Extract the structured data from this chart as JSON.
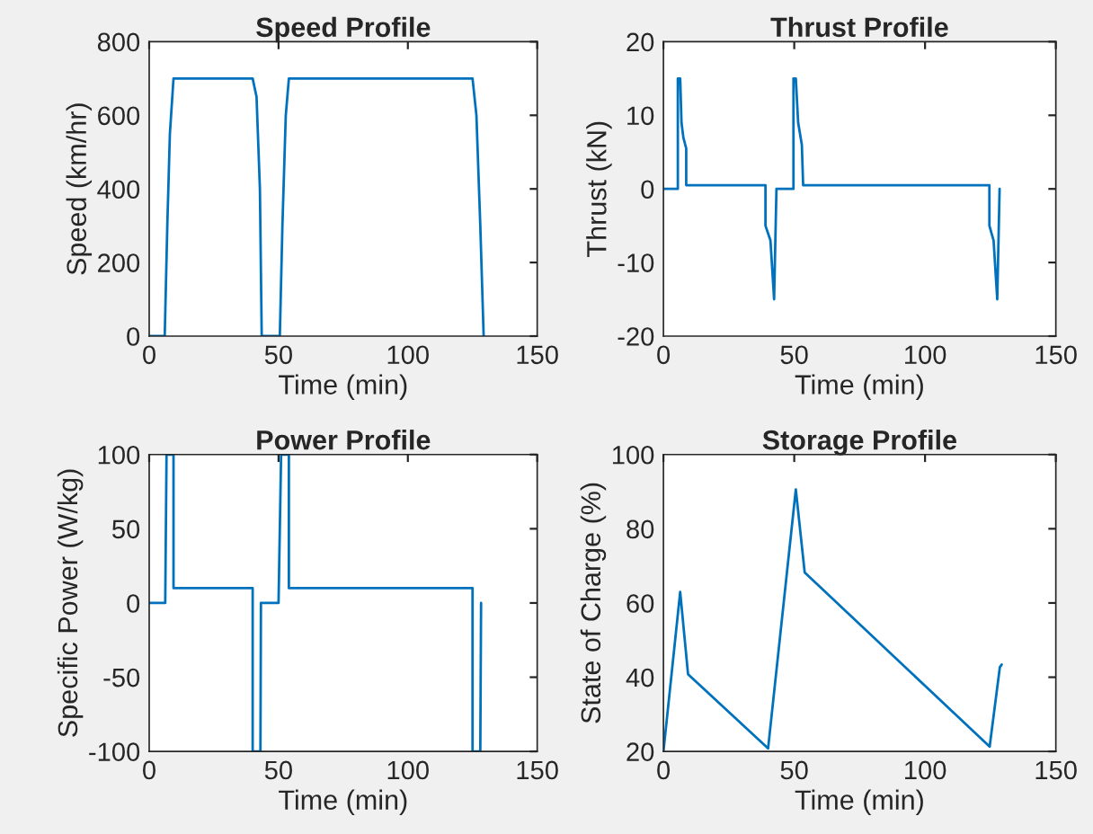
{
  "chart_data": [
    {
      "type": "line",
      "title": "Speed Profile",
      "xlabel": "Time (min)",
      "ylabel": "Speed (km/hr)",
      "xlim": [
        0,
        150
      ],
      "xticks": [
        0,
        50,
        100,
        150
      ],
      "ylim": [
        0,
        800
      ],
      "yticks": [
        0,
        200,
        400,
        600,
        800
      ],
      "grid": false,
      "legend": false,
      "series": [
        {
          "color": "#0072bd",
          "x": [
            0,
            6,
            7,
            8,
            9.4,
            40,
            41.5,
            42.8,
            43.5,
            50.5,
            51.5,
            52.8,
            54,
            125,
            126.5,
            128,
            129.3
          ],
          "values": [
            0,
            0,
            300,
            550,
            700,
            700,
            650,
            400,
            0,
            0,
            300,
            600,
            700,
            700,
            600,
            300,
            0
          ]
        }
      ]
    },
    {
      "type": "line",
      "title": "Thrust Profile",
      "xlabel": "Time (min)",
      "ylabel": "Thrust (kN)",
      "xlim": [
        0,
        150
      ],
      "xticks": [
        0,
        50,
        100,
        150
      ],
      "ylim": [
        -20,
        20
      ],
      "yticks": [
        -20,
        -10,
        0,
        10,
        20
      ],
      "grid": false,
      "legend": false,
      "series": [
        {
          "color": "#0072bd",
          "x": [
            0,
            5.5,
            5.5,
            6.4,
            6.9,
            7.6,
            8.7,
            8.7,
            39,
            39,
            40.9,
            42.3,
            43.2,
            49.7,
            49.7,
            50.6,
            51.5,
            52.9,
            53.4,
            124.6,
            124.6,
            126.2,
            127.6,
            128.5
          ],
          "values": [
            0,
            0,
            15,
            15,
            9,
            7,
            5.5,
            0.5,
            0.5,
            -5,
            -7,
            -15,
            0,
            0,
            15,
            15,
            9,
            6,
            0.5,
            0.5,
            -5,
            -7,
            -15,
            0
          ]
        }
      ]
    },
    {
      "type": "line",
      "title": "Power Profile",
      "xlabel": "Time (min)",
      "ylabel": "Specific Power (W/kg)",
      "xlim": [
        0,
        150
      ],
      "xticks": [
        0,
        50,
        100,
        150
      ],
      "ylim": [
        -100,
        100
      ],
      "yticks": [
        -100,
        -50,
        0,
        50,
        100
      ],
      "grid": false,
      "legend": false,
      "series": [
        {
          "color": "#0072bd",
          "x": [
            0,
            6.2,
            6.7,
            9.4,
            9.4,
            40,
            40,
            43,
            43.2,
            50,
            51,
            54,
            54,
            125,
            125,
            128,
            128.3
          ],
          "values": [
            0,
            0,
            100,
            100,
            10,
            10,
            -100,
            -100,
            0,
            0,
            100,
            100,
            10,
            10,
            -100,
            -100,
            0
          ]
        }
      ]
    },
    {
      "type": "line",
      "title": "Storage Profile",
      "xlabel": "Time (min)",
      "ylabel": "State of Charge (%)",
      "xlim": [
        0,
        150
      ],
      "xticks": [
        0,
        50,
        100,
        150
      ],
      "ylim": [
        20,
        100
      ],
      "yticks": [
        20,
        40,
        60,
        80,
        100
      ],
      "grid": false,
      "legend": false,
      "series": [
        {
          "color": "#0072bd",
          "x": [
            0,
            6.4,
            9.4,
            40,
            50.6,
            54,
            124.7,
            128.6,
            129.3
          ],
          "values": [
            20,
            63,
            40.8,
            20.8,
            90.6,
            68.2,
            21.3,
            42.7,
            43.4
          ]
        }
      ]
    }
  ]
}
